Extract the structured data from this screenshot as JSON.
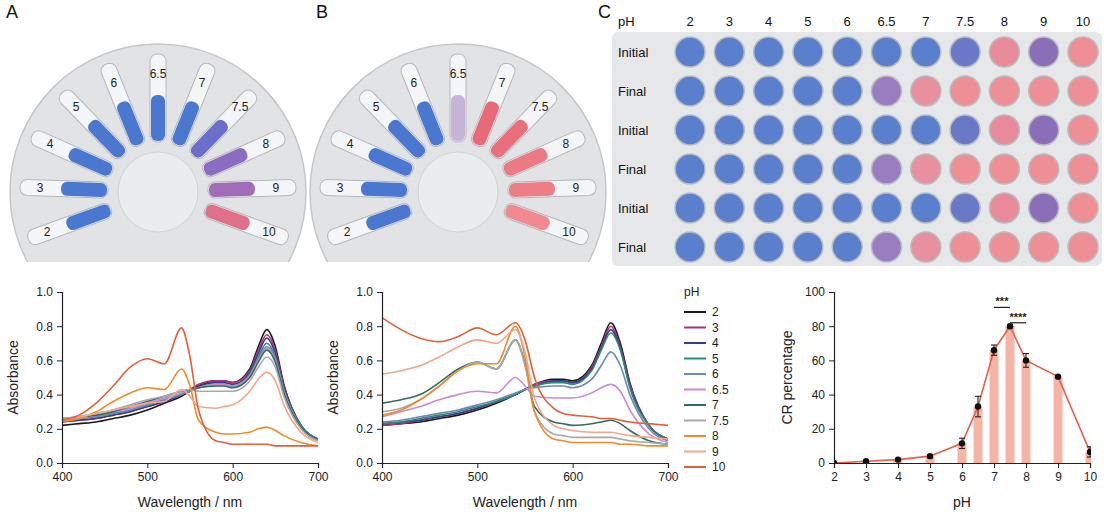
{
  "panel_labels": [
    "A",
    "B",
    "C"
  ],
  "photos": {
    "tubes_A": {
      "labels": [
        "2",
        "3",
        "4",
        "5",
        "6",
        "6.5",
        "7",
        "7.5",
        "8",
        "9",
        "10"
      ],
      "colors": [
        "#4a78d0",
        "#4a78d0",
        "#4a78d0",
        "#4a78d0",
        "#4a78d0",
        "#4a78d0",
        "#4a78d0",
        "#6a6ec8",
        "#8a6cc0",
        "#a06cb8",
        "#e0708a"
      ]
    },
    "tubes_B": {
      "labels": [
        "2",
        "3",
        "4",
        "5",
        "6",
        "6.5",
        "7",
        "7.5",
        "8",
        "9",
        "10"
      ],
      "colors": [
        "#4a78d0",
        "#4a78d0",
        "#4a78d0",
        "#4a78d0",
        "#4a78d0",
        "#c6b4d6",
        "#e86a78",
        "#e8707c",
        "#ec7a82",
        "#ee7e86",
        "#f08a8e"
      ]
    },
    "plate": {
      "header": "pH",
      "columns": [
        "2",
        "3",
        "4",
        "5",
        "6",
        "6.5",
        "7",
        "7.5",
        "8",
        "9",
        "10"
      ],
      "rows": [
        {
          "label": "Initial",
          "colors": [
            "#5a7fcc",
            "#5a7fcc",
            "#5a7fcc",
            "#5a7fcc",
            "#5a7fcc",
            "#5a7fcc",
            "#5a7fcc",
            "#6a78c8",
            "#e98a9a",
            "#8a6fb8",
            "#ee8f96"
          ]
        },
        {
          "label": "Final",
          "colors": [
            "#5a7fcc",
            "#5a7fcc",
            "#5a7fcc",
            "#5a7fcc",
            "#5a7fcc",
            "#9a7cc0",
            "#e8909f",
            "#ee8f96",
            "#ee8f96",
            "#ee8f96",
            "#ee8f96"
          ]
        },
        {
          "label": "Initial",
          "colors": [
            "#5a7fcc",
            "#5a7fcc",
            "#5a7fcc",
            "#5a7fcc",
            "#5a7fcc",
            "#5a7fcc",
            "#5a7fcc",
            "#6a78c8",
            "#e98a9a",
            "#8a6fb8",
            "#ee8f96"
          ]
        },
        {
          "label": "Final",
          "colors": [
            "#5a7fcc",
            "#5a7fcc",
            "#5a7fcc",
            "#5a7fcc",
            "#5a7fcc",
            "#9a7cc0",
            "#e8909f",
            "#ee8f96",
            "#ee8f96",
            "#ee8f96",
            "#ee8f96"
          ]
        },
        {
          "label": "Initial",
          "colors": [
            "#5a7fcc",
            "#5a7fcc",
            "#5a7fcc",
            "#5a7fcc",
            "#5a7fcc",
            "#5a7fcc",
            "#5a7fcc",
            "#6a78c8",
            "#e98a9a",
            "#8a6fb8",
            "#ee8f96"
          ]
        },
        {
          "label": "Final",
          "colors": [
            "#5a7fcc",
            "#5a7fcc",
            "#5a7fcc",
            "#5a7fcc",
            "#5a7fcc",
            "#9a7cc0",
            "#e8909f",
            "#ee8f96",
            "#ee8f96",
            "#ee8f96",
            "#ee8f96"
          ]
        }
      ]
    }
  },
  "chart_data": [
    {
      "type": "line",
      "x_label": "Wavelength / nm",
      "y_label": "Absorbance",
      "x": [
        400,
        420,
        440,
        460,
        480,
        500,
        520,
        540,
        550,
        560,
        580,
        590,
        600,
        620,
        630,
        640,
        650,
        660,
        680,
        700
      ],
      "xlim": [
        400,
        700
      ],
      "xticks": [
        400,
        500,
        600,
        700
      ],
      "ylim": [
        0,
        1
      ],
      "yticks": [
        {
          "value": 0,
          "label": "0.0"
        },
        {
          "value": 0.2,
          "label": "0.2"
        },
        {
          "value": 0.4,
          "label": "0.4"
        },
        {
          "value": 0.6,
          "label": "0.6"
        },
        {
          "value": 0.8,
          "label": "0.8"
        },
        {
          "value": 1,
          "label": "1.0"
        }
      ],
      "series": [
        {
          "color": "#1a1a1a",
          "values": [
            0.22,
            0.23,
            0.24,
            0.26,
            0.28,
            0.31,
            0.35,
            0.39,
            0.42,
            0.45,
            0.48,
            0.48,
            0.47,
            0.55,
            0.68,
            0.78,
            0.68,
            0.46,
            0.22,
            0.14
          ]
        },
        {
          "color": "#b0307a",
          "values": [
            0.24,
            0.25,
            0.26,
            0.28,
            0.3,
            0.33,
            0.36,
            0.4,
            0.43,
            0.46,
            0.48,
            0.48,
            0.47,
            0.54,
            0.66,
            0.75,
            0.66,
            0.45,
            0.22,
            0.14
          ]
        },
        {
          "color": "#3b3b8c",
          "values": [
            0.24,
            0.25,
            0.26,
            0.28,
            0.3,
            0.33,
            0.36,
            0.4,
            0.43,
            0.45,
            0.47,
            0.47,
            0.46,
            0.53,
            0.64,
            0.73,
            0.64,
            0.44,
            0.22,
            0.14
          ]
        },
        {
          "color": "#2a8a7a",
          "values": [
            0.25,
            0.26,
            0.27,
            0.29,
            0.31,
            0.34,
            0.37,
            0.4,
            0.42,
            0.44,
            0.46,
            0.46,
            0.45,
            0.52,
            0.62,
            0.7,
            0.62,
            0.43,
            0.22,
            0.14
          ]
        },
        {
          "color": "#6b89b3",
          "values": [
            0.25,
            0.26,
            0.27,
            0.29,
            0.31,
            0.34,
            0.37,
            0.4,
            0.42,
            0.44,
            0.46,
            0.46,
            0.45,
            0.51,
            0.61,
            0.68,
            0.61,
            0.42,
            0.21,
            0.14
          ]
        },
        {
          "color": "#c98bd0",
          "values": [
            0.25,
            0.26,
            0.28,
            0.3,
            0.32,
            0.35,
            0.38,
            0.41,
            0.43,
            0.44,
            0.46,
            0.46,
            0.45,
            0.51,
            0.6,
            0.67,
            0.6,
            0.42,
            0.21,
            0.14
          ]
        },
        {
          "color": "#2f6e5e",
          "values": [
            0.26,
            0.27,
            0.28,
            0.3,
            0.33,
            0.36,
            0.39,
            0.42,
            0.43,
            0.44,
            0.45,
            0.45,
            0.44,
            0.5,
            0.59,
            0.66,
            0.59,
            0.41,
            0.21,
            0.14
          ]
        },
        {
          "color": "#a8a8a8",
          "values": [
            0.26,
            0.27,
            0.29,
            0.31,
            0.34,
            0.37,
            0.39,
            0.42,
            0.43,
            0.42,
            0.42,
            0.42,
            0.42,
            0.48,
            0.56,
            0.62,
            0.56,
            0.39,
            0.2,
            0.13
          ]
        },
        {
          "color": "#f08a2a",
          "values": [
            0.24,
            0.26,
            0.3,
            0.36,
            0.41,
            0.44,
            0.43,
            0.55,
            0.45,
            0.25,
            0.18,
            0.17,
            0.17,
            0.18,
            0.2,
            0.21,
            0.19,
            0.16,
            0.12,
            0.1
          ]
        },
        {
          "color": "#f4a58a",
          "values": [
            0.25,
            0.27,
            0.29,
            0.31,
            0.33,
            0.35,
            0.36,
            0.43,
            0.39,
            0.33,
            0.32,
            0.33,
            0.34,
            0.42,
            0.49,
            0.53,
            0.48,
            0.34,
            0.18,
            0.12
          ]
        },
        {
          "color": "#e0603a",
          "values": [
            0.25,
            0.28,
            0.35,
            0.45,
            0.56,
            0.61,
            0.58,
            0.79,
            0.62,
            0.31,
            0.13,
            0.12,
            0.11,
            0.11,
            0.11,
            0.11,
            0.1,
            0.1,
            0.1,
            0.1
          ]
        }
      ]
    },
    {
      "type": "line",
      "x_label": "Wavelength / nm",
      "y_label": "Absorbance",
      "legend": "right",
      "legend_title": "pH",
      "x": [
        400,
        420,
        440,
        460,
        480,
        500,
        520,
        540,
        550,
        560,
        580,
        590,
        600,
        620,
        630,
        640,
        650,
        660,
        680,
        700
      ],
      "xlim": [
        400,
        700
      ],
      "xticks": [
        400,
        500,
        600,
        700
      ],
      "ylim": [
        0,
        1
      ],
      "yticks": [
        {
          "value": 0,
          "label": "0.0"
        },
        {
          "value": 0.2,
          "label": "0.2"
        },
        {
          "value": 0.4,
          "label": "0.4"
        },
        {
          "value": 0.6,
          "label": "0.6"
        },
        {
          "value": 0.8,
          "label": "0.8"
        },
        {
          "value": 1,
          "label": "1.0"
        }
      ],
      "series": [
        {
          "name": "2",
          "color": "#1a1a1a",
          "values": [
            0.22,
            0.23,
            0.24,
            0.26,
            0.28,
            0.31,
            0.35,
            0.4,
            0.43,
            0.46,
            0.49,
            0.49,
            0.48,
            0.57,
            0.7,
            0.82,
            0.7,
            0.47,
            0.22,
            0.14
          ]
        },
        {
          "name": "3",
          "color": "#b0307a",
          "values": [
            0.22,
            0.23,
            0.25,
            0.27,
            0.29,
            0.32,
            0.36,
            0.4,
            0.43,
            0.46,
            0.48,
            0.48,
            0.47,
            0.56,
            0.68,
            0.8,
            0.68,
            0.46,
            0.22,
            0.14
          ]
        },
        {
          "name": "4",
          "color": "#3b3b8c",
          "values": [
            0.23,
            0.24,
            0.25,
            0.27,
            0.29,
            0.32,
            0.36,
            0.4,
            0.43,
            0.45,
            0.48,
            0.48,
            0.47,
            0.55,
            0.67,
            0.78,
            0.67,
            0.45,
            0.22,
            0.14
          ]
        },
        {
          "name": "5",
          "color": "#2a8a7a",
          "values": [
            0.23,
            0.24,
            0.26,
            0.28,
            0.3,
            0.33,
            0.36,
            0.4,
            0.43,
            0.45,
            0.47,
            0.47,
            0.46,
            0.54,
            0.66,
            0.76,
            0.66,
            0.44,
            0.22,
            0.14
          ]
        },
        {
          "name": "6",
          "color": "#6b89b3",
          "values": [
            0.24,
            0.25,
            0.27,
            0.29,
            0.31,
            0.34,
            0.37,
            0.41,
            0.43,
            0.44,
            0.45,
            0.45,
            0.44,
            0.49,
            0.57,
            0.65,
            0.57,
            0.4,
            0.2,
            0.13
          ]
        },
        {
          "name": "6.5",
          "color": "#c98bd0",
          "values": [
            0.27,
            0.3,
            0.33,
            0.37,
            0.4,
            0.42,
            0.41,
            0.5,
            0.45,
            0.39,
            0.38,
            0.38,
            0.38,
            0.41,
            0.44,
            0.46,
            0.42,
            0.31,
            0.17,
            0.12
          ]
        },
        {
          "name": "7",
          "color": "#2f6e5e",
          "values": [
            0.35,
            0.37,
            0.4,
            0.47,
            0.55,
            0.59,
            0.55,
            0.72,
            0.58,
            0.33,
            0.24,
            0.23,
            0.22,
            0.23,
            0.24,
            0.25,
            0.23,
            0.19,
            0.13,
            0.11
          ]
        },
        {
          "name": "7.5",
          "color": "#a8a8a8",
          "values": [
            0.3,
            0.32,
            0.37,
            0.45,
            0.54,
            0.59,
            0.55,
            0.72,
            0.57,
            0.3,
            0.17,
            0.16,
            0.15,
            0.15,
            0.15,
            0.15,
            0.14,
            0.13,
            0.12,
            0.11
          ]
        },
        {
          "name": "8",
          "color": "#f08a2a",
          "values": [
            0.28,
            0.31,
            0.37,
            0.45,
            0.54,
            0.58,
            0.58,
            0.8,
            0.62,
            0.3,
            0.14,
            0.13,
            0.12,
            0.12,
            0.12,
            0.12,
            0.11,
            0.11,
            0.1,
            0.1
          ]
        },
        {
          "name": "9",
          "color": "#f4a58a",
          "values": [
            0.52,
            0.54,
            0.57,
            0.62,
            0.68,
            0.72,
            0.7,
            0.78,
            0.65,
            0.38,
            0.22,
            0.2,
            0.19,
            0.18,
            0.18,
            0.18,
            0.17,
            0.16,
            0.15,
            0.14
          ]
        },
        {
          "name": "10",
          "color": "#e0603a",
          "values": [
            0.85,
            0.78,
            0.73,
            0.71,
            0.74,
            0.79,
            0.75,
            0.82,
            0.72,
            0.5,
            0.32,
            0.29,
            0.28,
            0.27,
            0.26,
            0.26,
            0.25,
            0.24,
            0.23,
            0.22
          ]
        }
      ]
    },
    {
      "type": "bar",
      "x_label": "pH",
      "y_label": "CR percentage",
      "color": "#f5b5a5",
      "x": [
        2,
        3,
        4,
        5,
        6,
        6.5,
        7,
        7.5,
        8,
        9,
        10
      ],
      "xlim": [
        2,
        10
      ],
      "xticks": [
        2,
        3,
        4,
        5,
        6,
        7,
        8,
        9,
        10
      ],
      "ylim": [
        0,
        100
      ],
      "yticks": [
        0,
        20,
        40,
        60,
        80,
        100
      ],
      "series": [
        {
          "marker": "circle",
          "line_style": "solid",
          "values": [
            0,
            1,
            2,
            4,
            11.5,
            33,
            66,
            80,
            60,
            50.5,
            6.5
          ],
          "errors": [
            0.3,
            0.3,
            0.5,
            0.8,
            3,
            6,
            3,
            1,
            4,
            0.5,
            3
          ]
        }
      ],
      "annotations": [
        {
          "text": "***",
          "x": [
            7,
            7.5
          ],
          "y": 91
        },
        {
          "text": "****",
          "x": [
            7.5,
            8
          ],
          "y": 82
        }
      ]
    }
  ]
}
